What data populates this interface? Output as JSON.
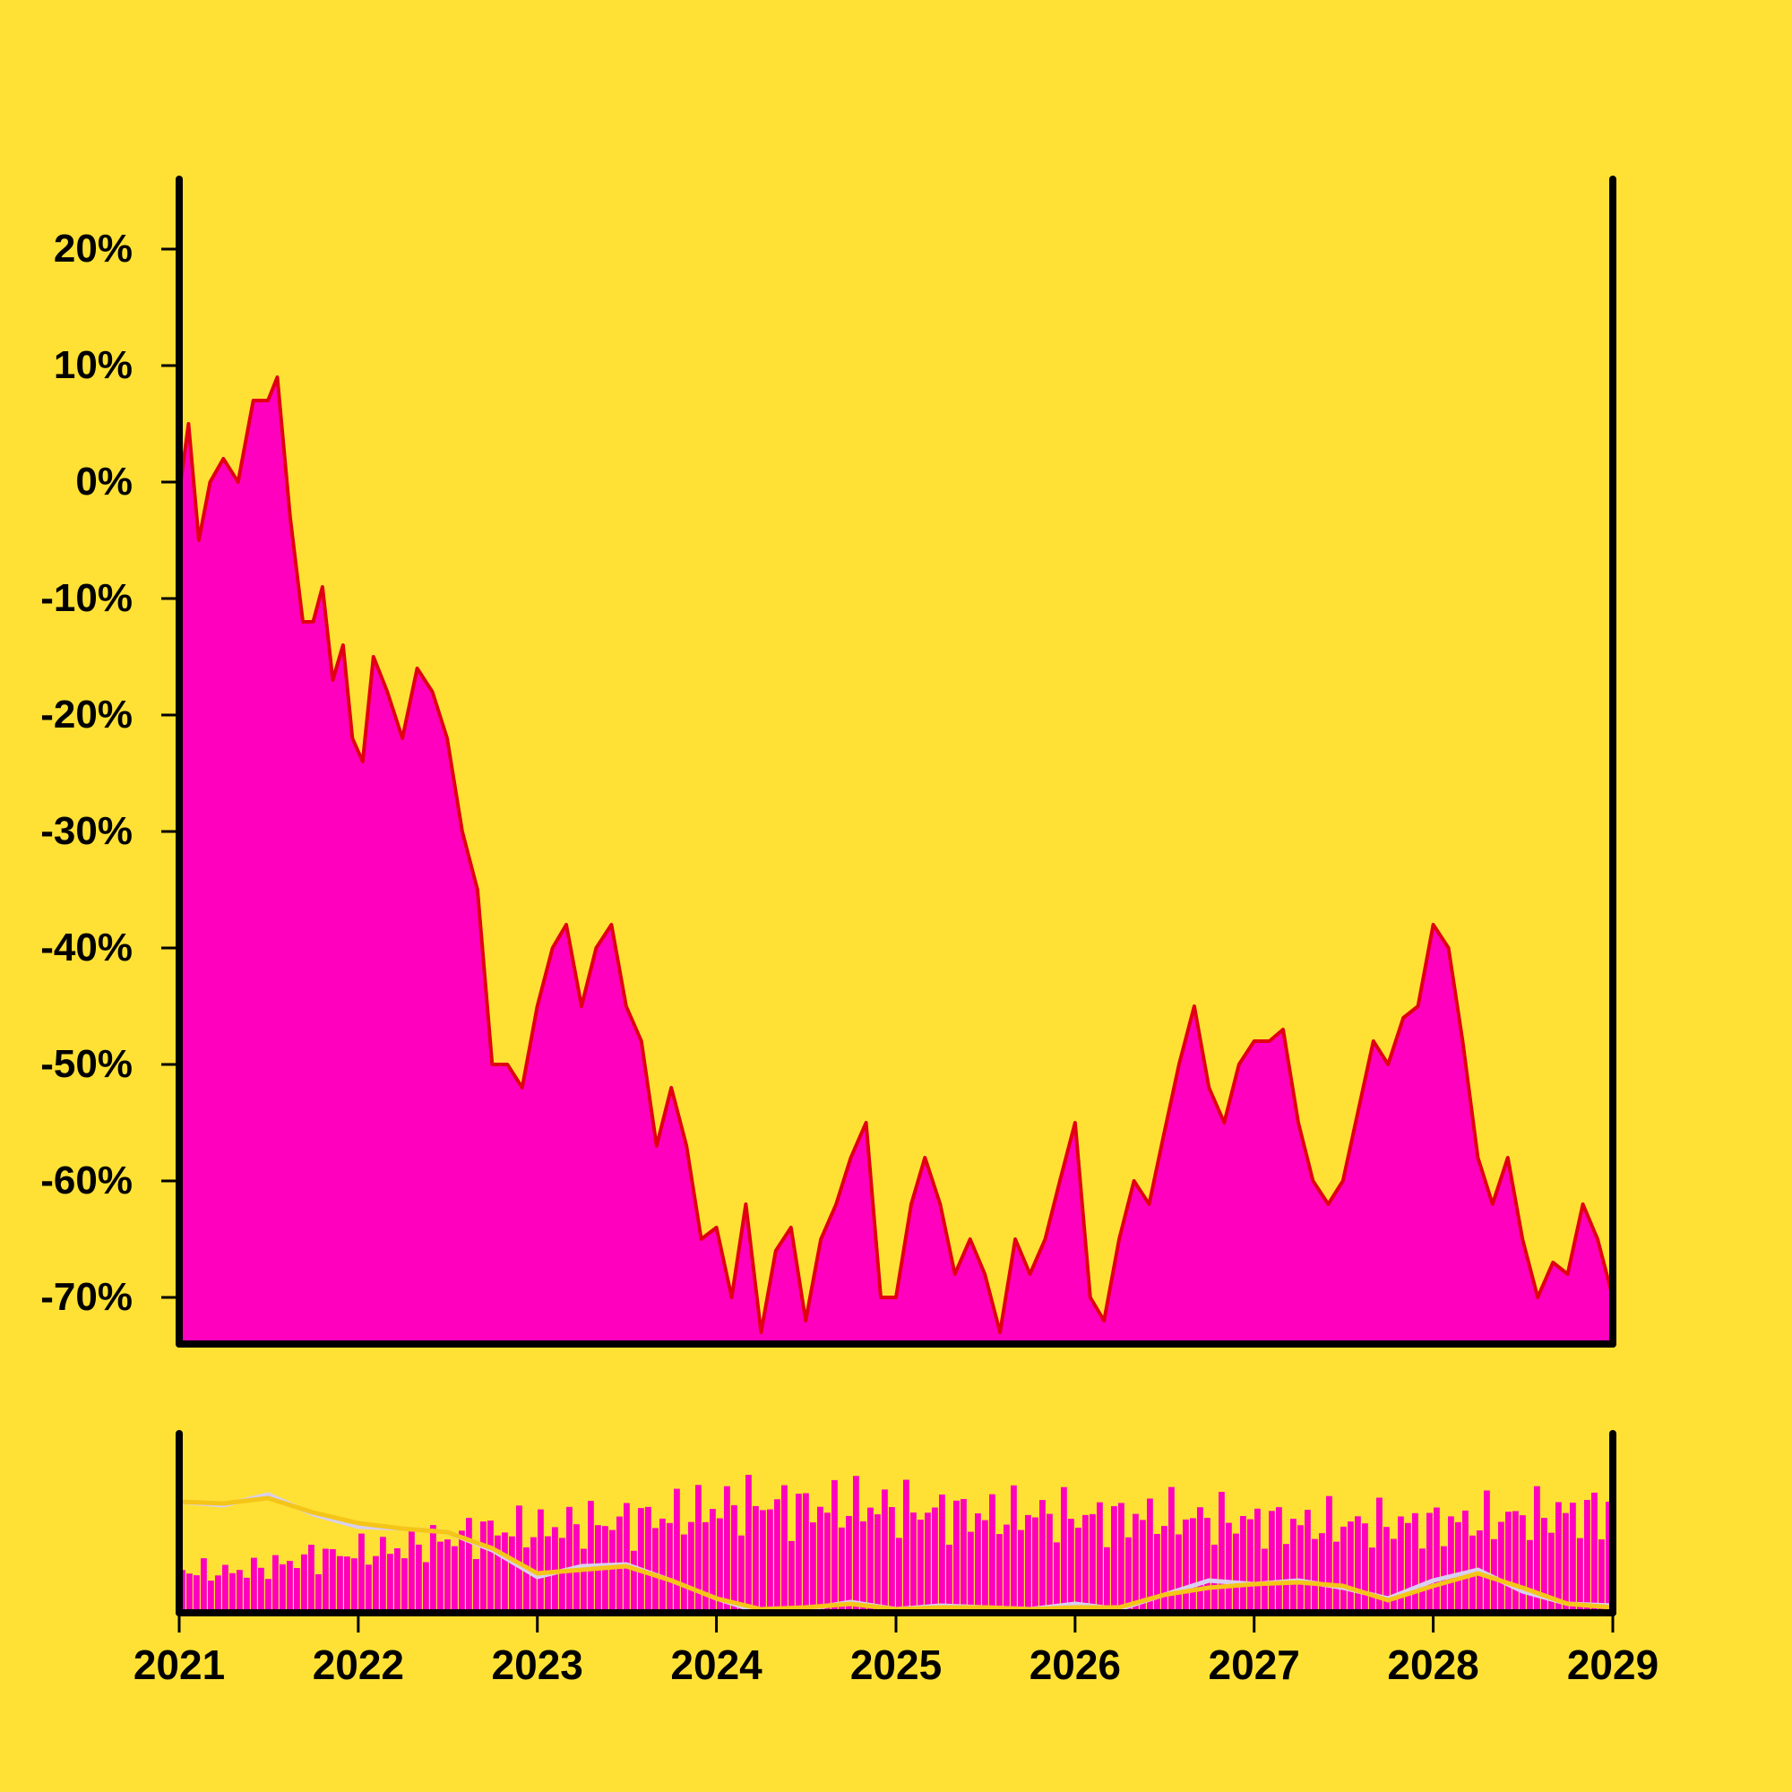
{
  "chart_data": [
    {
      "type": "area",
      "title": "",
      "xlabel": "",
      "ylabel": "",
      "y_unit": "%",
      "x_axis": "date",
      "xlim": [
        "2021-01-01",
        "2029-01-01"
      ],
      "ylim": [
        -74,
        26
      ],
      "x_ticks": [
        "2021",
        "2022",
        "2023",
        "2024",
        "2025",
        "2026",
        "2027",
        "2028",
        "2029"
      ],
      "y_ticks": [
        {
          "value": 20,
          "label": "20%"
        },
        {
          "value": 10,
          "label": "10%"
        },
        {
          "value": 0,
          "label": "0%"
        },
        {
          "value": -10,
          "label": "-10%"
        },
        {
          "value": -20,
          "label": "-20%"
        },
        {
          "value": -30,
          "label": "-30%"
        },
        {
          "value": -40,
          "label": "-40%"
        },
        {
          "value": -50,
          "label": "-50%"
        },
        {
          "value": -60,
          "label": "-60%"
        },
        {
          "value": -70,
          "label": "-70%"
        }
      ],
      "grid": false,
      "legend": "none",
      "colors": {
        "background": "#FFE135",
        "fill": "#FF00BF",
        "line": "#E00010",
        "axis": "#000000"
      },
      "series": [
        {
          "x": [
            "2021-01-01",
            "2021-01-20",
            "2021-02-10",
            "2021-03-05",
            "2021-04-01",
            "2021-05-01",
            "2021-06-01",
            "2021-07-01",
            "2021-07-20",
            "2021-08-15",
            "2021-09-10",
            "2021-10-01",
            "2021-10-20",
            "2021-11-10",
            "2021-12-01",
            "2021-12-20",
            "2022-01-10",
            "2022-02-01",
            "2022-03-01",
            "2022-04-01",
            "2022-05-01",
            "2022-06-01",
            "2022-07-01",
            "2022-08-01",
            "2022-09-01",
            "2022-10-01",
            "2022-11-01",
            "2022-12-01",
            "2023-01-01",
            "2023-02-01",
            "2023-03-01",
            "2023-04-01",
            "2023-05-01",
            "2023-06-01",
            "2023-07-01",
            "2023-08-01",
            "2023-09-01",
            "2023-10-01",
            "2023-11-01",
            "2023-12-01",
            "2024-01-01",
            "2024-02-01",
            "2024-03-01",
            "2024-04-01",
            "2024-05-01",
            "2024-06-01",
            "2024-07-01",
            "2024-08-01",
            "2024-09-01",
            "2024-10-01",
            "2024-11-01",
            "2024-12-01",
            "2025-01-01",
            "2025-02-01",
            "2025-03-01",
            "2025-04-01",
            "2025-05-01",
            "2025-06-01",
            "2025-07-01",
            "2025-08-01",
            "2025-09-01",
            "2025-10-01",
            "2025-11-01",
            "2025-12-01",
            "2026-01-01",
            "2026-02-01",
            "2026-03-01",
            "2026-04-01",
            "2026-05-01",
            "2026-06-01",
            "2026-07-01",
            "2026-08-01",
            "2026-09-01",
            "2026-10-01",
            "2026-11-01",
            "2026-12-01",
            "2027-01-01",
            "2027-02-01",
            "2027-03-01",
            "2027-04-01",
            "2027-05-01",
            "2027-06-01",
            "2027-07-01",
            "2027-08-01",
            "2027-09-01",
            "2027-10-01",
            "2027-11-01",
            "2027-12-01",
            "2028-01-01",
            "2028-02-01",
            "2028-03-01",
            "2028-04-01",
            "2028-05-01",
            "2028-06-01",
            "2028-07-01",
            "2028-08-01",
            "2028-09-01",
            "2028-10-01",
            "2028-11-01",
            "2028-12-01",
            "2029-01-01"
          ],
          "values": [
            -1,
            5,
            -5,
            0,
            2,
            0,
            7,
            7,
            9,
            -3,
            -12,
            -12,
            -9,
            -17,
            -14,
            -22,
            -24,
            -15,
            -18,
            -22,
            -16,
            -18,
            -22,
            -30,
            -35,
            -50,
            -50,
            -52,
            -45,
            -40,
            -38,
            -45,
            -40,
            -38,
            -45,
            -48,
            -57,
            -52,
            -57,
            -65,
            -64,
            -70,
            -62,
            -73,
            -66,
            -64,
            -72,
            -65,
            -62,
            -58,
            -55,
            -70,
            -70,
            -62,
            -58,
            -62,
            -68,
            -65,
            -68,
            -73,
            -65,
            -68,
            -65,
            -60,
            -55,
            -70,
            -72,
            -65,
            -60,
            -62,
            -56,
            -50,
            -45,
            -52,
            -55,
            -50,
            -48,
            -48,
            -47,
            -55,
            -60,
            -62,
            -60,
            -54,
            -48,
            -50,
            -46,
            -45,
            -38,
            -40,
            -48,
            -58,
            -62,
            -58,
            -65,
            -70,
            -67,
            -68,
            -62,
            -65,
            -70
          ]
        }
      ]
    },
    {
      "type": "bar",
      "title": "",
      "xlabel": "",
      "ylabel": "",
      "x_axis": "date",
      "xlim": [
        "2021-01-01",
        "2029-01-01"
      ],
      "ylim": [
        0,
        1
      ],
      "x_ticks": [
        "2021",
        "2022",
        "2023",
        "2024",
        "2025",
        "2026",
        "2027",
        "2028",
        "2029"
      ],
      "grid": false,
      "legend": "none",
      "colors": {
        "bars": "#FF00BF",
        "line_a": "#D8D0F0",
        "line_b": "#F5C518",
        "axis": "#000000"
      },
      "series": [
        {
          "x": [
            "2021-01-01",
            "2021-04-01",
            "2021-07-01",
            "2021-10-01",
            "2022-01-01",
            "2022-04-01",
            "2022-07-01",
            "2022-10-01",
            "2023-01-01",
            "2023-04-01",
            "2023-07-01",
            "2023-10-01",
            "2024-01-01",
            "2024-04-01",
            "2024-07-01",
            "2024-10-01",
            "2025-01-01",
            "2025-04-01",
            "2025-07-01",
            "2025-10-01",
            "2026-01-01",
            "2026-04-01",
            "2026-07-01",
            "2026-10-01",
            "2027-01-01",
            "2027-04-01",
            "2027-07-01",
            "2027-10-01",
            "2028-01-01",
            "2028-04-01",
            "2028-07-01",
            "2028-10-01",
            "2029-01-01"
          ],
          "values": [
            0.32,
            0.3,
            0.34,
            0.42,
            0.45,
            0.48,
            0.55,
            0.62,
            0.62,
            0.66,
            0.68,
            0.72,
            0.78,
            0.82,
            0.78,
            0.8,
            0.78,
            0.75,
            0.72,
            0.74,
            0.72,
            0.7,
            0.72,
            0.7,
            0.68,
            0.66,
            0.66,
            0.66,
            0.66,
            0.68,
            0.72,
            0.74,
            0.76
          ]
        },
        {
          "x": [
            "2021-01-01",
            "2021-04-01",
            "2021-07-01",
            "2021-10-01",
            "2022-01-01",
            "2022-04-01",
            "2022-07-01",
            "2022-10-01",
            "2023-01-01",
            "2023-04-01",
            "2023-07-01",
            "2023-10-01",
            "2024-01-01",
            "2024-04-01",
            "2024-07-01",
            "2024-10-01",
            "2025-01-01",
            "2025-04-01",
            "2025-07-01",
            "2025-10-01",
            "2026-01-01",
            "2026-04-01",
            "2026-07-01",
            "2026-10-01",
            "2027-01-01",
            "2027-04-01",
            "2027-07-01",
            "2027-10-01",
            "2028-01-01",
            "2028-04-01",
            "2028-07-01",
            "2028-10-01",
            "2029-01-01"
          ],
          "values": [
            0.62,
            0.6,
            0.66,
            0.55,
            0.48,
            0.47,
            0.45,
            0.35,
            0.2,
            0.26,
            0.27,
            0.18,
            0.08,
            0.0,
            0.02,
            0.06,
            0.02,
            0.04,
            0.03,
            0.02,
            0.05,
            0.02,
            0.1,
            0.18,
            0.16,
            0.18,
            0.14,
            0.08,
            0.18,
            0.24,
            0.12,
            0.05,
            0.04
          ]
        },
        {
          "x": [
            "2021-01-01",
            "2021-04-01",
            "2021-07-01",
            "2021-10-01",
            "2022-01-01",
            "2022-04-01",
            "2022-07-01",
            "2022-10-01",
            "2023-01-01",
            "2023-04-01",
            "2023-07-01",
            "2023-10-01",
            "2024-01-01",
            "2024-04-01",
            "2024-07-01",
            "2024-10-01",
            "2025-01-01",
            "2025-04-01",
            "2025-07-01",
            "2025-10-01",
            "2026-01-01",
            "2026-04-01",
            "2026-07-01",
            "2026-10-01",
            "2027-01-01",
            "2027-04-01",
            "2027-07-01",
            "2027-10-01",
            "2028-01-01",
            "2028-04-01",
            "2028-07-01",
            "2028-10-01",
            "2029-01-01"
          ],
          "values": [
            0.62,
            0.61,
            0.64,
            0.56,
            0.5,
            0.47,
            0.45,
            0.36,
            0.22,
            0.24,
            0.26,
            0.18,
            0.08,
            0.02,
            0.03,
            0.05,
            0.02,
            0.03,
            0.03,
            0.02,
            0.03,
            0.03,
            0.1,
            0.14,
            0.16,
            0.17,
            0.15,
            0.07,
            0.15,
            0.22,
            0.14,
            0.05,
            0.03
          ]
        }
      ]
    }
  ]
}
